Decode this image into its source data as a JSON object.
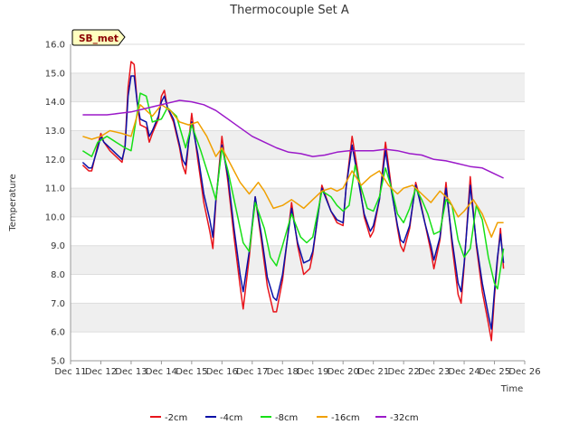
{
  "chart_data": {
    "type": "line",
    "title": "Thermocouple Set A",
    "xlabel": "Time",
    "ylabel": "Temperature",
    "badge": "SB_met",
    "ylim": [
      5.0,
      16.0
    ],
    "yticks": [
      "5.0",
      "6.0",
      "7.0",
      "8.0",
      "9.0",
      "10.0",
      "11.0",
      "12.0",
      "13.0",
      "14.0",
      "15.0",
      "16.0"
    ],
    "xlim": [
      11,
      26
    ],
    "xticks": [
      "Dec 11",
      "Dec 12",
      "Dec 13",
      "Dec 14",
      "Dec 15",
      "Dec 16",
      "Dec 17",
      "Dec 18",
      "Dec 19",
      "Dec 20",
      "Dec 21",
      "Dec 22",
      "Dec 23",
      "Dec 24",
      "Dec 25",
      "Dec 26"
    ],
    "series": [
      {
        "name": "-2cm",
        "color": "#e8141b",
        "x": [
          11.4,
          11.6,
          11.7,
          11.9,
          12.0,
          12.1,
          12.3,
          12.5,
          12.7,
          12.8,
          12.9,
          13.0,
          13.1,
          13.2,
          13.3,
          13.5,
          13.6,
          13.7,
          13.9,
          14.0,
          14.1,
          14.2,
          14.4,
          14.6,
          14.7,
          14.8,
          14.9,
          15.0,
          15.2,
          15.4,
          15.6,
          15.7,
          15.8,
          16.0,
          16.2,
          16.4,
          16.6,
          16.7,
          16.9,
          17.1,
          17.3,
          17.5,
          17.7,
          17.8,
          18.0,
          18.3,
          18.5,
          18.7,
          18.9,
          19.0,
          19.3,
          19.6,
          19.8,
          20.0,
          20.1,
          20.3,
          20.5,
          20.7,
          20.9,
          21.0,
          21.2,
          21.4,
          21.6,
          21.8,
          21.9,
          22.0,
          22.2,
          22.4,
          22.5,
          22.7,
          22.9,
          23.0,
          23.2,
          23.4,
          23.6,
          23.8,
          23.9,
          24.0,
          24.2,
          24.4,
          24.6,
          24.8,
          24.9,
          25.0,
          25.1,
          25.2,
          25.3
        ],
        "y": [
          11.8,
          11.6,
          11.6,
          12.5,
          12.9,
          12.6,
          12.3,
          12.1,
          11.9,
          12.5,
          14.5,
          15.4,
          15.3,
          14.0,
          13.2,
          13.1,
          12.6,
          12.9,
          13.4,
          14.2,
          14.4,
          13.8,
          13.3,
          12.4,
          11.8,
          11.5,
          12.6,
          13.6,
          12.0,
          10.5,
          9.5,
          8.9,
          10.5,
          12.8,
          11.2,
          9.3,
          7.6,
          6.8,
          8.6,
          10.7,
          9.2,
          7.6,
          6.7,
          6.7,
          7.8,
          10.5,
          9.0,
          8.0,
          8.2,
          8.7,
          11.1,
          10.2,
          9.8,
          9.7,
          11.0,
          12.8,
          11.5,
          10.0,
          9.3,
          9.5,
          10.6,
          12.6,
          11.0,
          9.6,
          9.0,
          8.8,
          9.6,
          11.2,
          10.8,
          9.8,
          8.8,
          8.2,
          9.2,
          11.2,
          9.0,
          7.3,
          7.0,
          8.3,
          11.4,
          9.0,
          7.4,
          6.3,
          5.7,
          7.2,
          8.5,
          9.6,
          8.2
        ]
      },
      {
        "name": "-4cm",
        "color": "#0b10a6",
        "x": [
          11.4,
          11.6,
          11.7,
          11.9,
          12.0,
          12.1,
          12.3,
          12.5,
          12.7,
          12.8,
          12.9,
          13.0,
          13.1,
          13.2,
          13.3,
          13.5,
          13.6,
          13.7,
          13.9,
          14.0,
          14.1,
          14.2,
          14.4,
          14.6,
          14.7,
          14.8,
          14.9,
          15.0,
          15.2,
          15.4,
          15.6,
          15.7,
          15.8,
          16.0,
          16.2,
          16.4,
          16.6,
          16.7,
          16.9,
          17.1,
          17.3,
          17.5,
          17.7,
          17.8,
          18.0,
          18.3,
          18.5,
          18.7,
          18.9,
          19.0,
          19.3,
          19.6,
          19.8,
          20.0,
          20.1,
          20.3,
          20.5,
          20.7,
          20.9,
          21.0,
          21.2,
          21.4,
          21.6,
          21.8,
          21.9,
          22.0,
          22.2,
          22.4,
          22.5,
          22.7,
          22.9,
          23.0,
          23.2,
          23.4,
          23.6,
          23.8,
          23.9,
          24.0,
          24.2,
          24.4,
          24.6,
          24.8,
          24.9,
          25.0,
          25.1,
          25.2,
          25.3
        ],
        "y": [
          11.9,
          11.7,
          11.7,
          12.4,
          12.8,
          12.6,
          12.4,
          12.2,
          12.0,
          12.4,
          14.2,
          14.9,
          14.9,
          14.0,
          13.4,
          13.3,
          12.8,
          13.0,
          13.5,
          14.0,
          14.2,
          13.8,
          13.4,
          12.5,
          12.0,
          11.8,
          12.6,
          13.3,
          12.2,
          10.8,
          9.9,
          9.3,
          10.6,
          12.5,
          11.4,
          9.6,
          8.0,
          7.4,
          8.8,
          10.7,
          9.4,
          7.9,
          7.2,
          7.1,
          8.0,
          10.3,
          9.1,
          8.4,
          8.5,
          8.8,
          11.0,
          10.2,
          9.9,
          9.8,
          11.0,
          12.5,
          11.3,
          10.1,
          9.5,
          9.7,
          10.6,
          12.3,
          10.9,
          9.7,
          9.2,
          9.1,
          9.7,
          11.1,
          10.7,
          9.8,
          9.0,
          8.5,
          9.3,
          11.0,
          9.2,
          7.7,
          7.4,
          8.4,
          11.1,
          9.1,
          7.7,
          6.6,
          6.1,
          7.4,
          8.6,
          9.4,
          8.4
        ]
      },
      {
        "name": "-8cm",
        "color": "#16e016",
        "x": [
          11.4,
          11.7,
          11.9,
          12.2,
          12.5,
          12.8,
          13.0,
          13.2,
          13.3,
          13.5,
          13.7,
          14.0,
          14.2,
          14.5,
          14.8,
          15.0,
          15.3,
          15.6,
          15.8,
          16.0,
          16.2,
          16.5,
          16.7,
          16.9,
          17.1,
          17.4,
          17.6,
          17.8,
          18.0,
          18.3,
          18.6,
          18.8,
          19.0,
          19.3,
          19.6,
          19.8,
          20.0,
          20.2,
          20.4,
          20.6,
          20.8,
          21.0,
          21.2,
          21.4,
          21.6,
          21.8,
          22.0,
          22.2,
          22.4,
          22.6,
          22.8,
          23.0,
          23.2,
          23.4,
          23.6,
          23.8,
          24.0,
          24.2,
          24.4,
          24.6,
          24.8,
          25.0,
          25.1,
          25.3
        ],
        "y": [
          12.3,
          12.1,
          12.6,
          12.8,
          12.6,
          12.4,
          12.3,
          13.6,
          14.3,
          14.2,
          13.3,
          13.4,
          13.8,
          13.5,
          12.4,
          13.2,
          12.3,
          11.3,
          10.6,
          12.4,
          11.6,
          10.1,
          9.1,
          8.8,
          10.5,
          9.6,
          8.6,
          8.3,
          9.0,
          10.1,
          9.3,
          9.1,
          9.3,
          10.9,
          10.7,
          10.4,
          10.2,
          10.4,
          11.8,
          11.0,
          10.3,
          10.2,
          10.7,
          11.7,
          11.0,
          10.1,
          9.8,
          10.3,
          11.0,
          10.6,
          10.1,
          9.4,
          9.5,
          10.6,
          10.4,
          9.2,
          8.6,
          8.9,
          10.4,
          9.9,
          8.6,
          7.7,
          7.5,
          8.9
        ]
      },
      {
        "name": "-16cm",
        "color": "#f0a000",
        "x": [
          11.4,
          11.7,
          12.0,
          12.3,
          12.7,
          13.0,
          13.3,
          13.7,
          14.0,
          14.3,
          14.6,
          14.9,
          15.2,
          15.5,
          15.8,
          16.0,
          16.3,
          16.6,
          16.9,
          17.2,
          17.4,
          17.7,
          18.0,
          18.3,
          18.7,
          19.0,
          19.3,
          19.6,
          19.8,
          20.0,
          20.3,
          20.6,
          20.9,
          21.2,
          21.5,
          21.8,
          22.0,
          22.3,
          22.6,
          22.9,
          23.2,
          23.5,
          23.8,
          24.0,
          24.3,
          24.6,
          24.9,
          25.1,
          25.3
        ],
        "y": [
          12.8,
          12.7,
          12.8,
          13.0,
          12.9,
          12.8,
          13.9,
          13.5,
          13.9,
          13.7,
          13.3,
          13.2,
          13.3,
          12.8,
          12.1,
          12.4,
          11.8,
          11.2,
          10.8,
          11.2,
          10.9,
          10.3,
          10.4,
          10.6,
          10.3,
          10.6,
          10.9,
          11.0,
          10.9,
          11.0,
          11.6,
          11.1,
          11.4,
          11.6,
          11.1,
          10.8,
          11.0,
          11.1,
          10.8,
          10.5,
          10.9,
          10.6,
          10.0,
          10.2,
          10.6,
          10.1,
          9.3,
          9.8,
          9.8
        ]
      },
      {
        "name": "-32cm",
        "color": "#9b19c9",
        "x": [
          11.4,
          11.8,
          12.2,
          12.6,
          13.0,
          13.4,
          13.8,
          14.2,
          14.6,
          15.0,
          15.4,
          15.8,
          16.2,
          16.6,
          17.0,
          17.4,
          17.8,
          18.2,
          18.6,
          19.0,
          19.4,
          19.8,
          20.2,
          20.6,
          21.0,
          21.4,
          21.8,
          22.2,
          22.6,
          23.0,
          23.4,
          23.8,
          24.2,
          24.6,
          25.0,
          25.3
        ],
        "y": [
          13.55,
          13.55,
          13.55,
          13.6,
          13.65,
          13.75,
          13.85,
          13.95,
          14.05,
          14.0,
          13.9,
          13.7,
          13.4,
          13.1,
          12.8,
          12.6,
          12.4,
          12.25,
          12.2,
          12.1,
          12.15,
          12.25,
          12.3,
          12.3,
          12.3,
          12.35,
          12.3,
          12.2,
          12.15,
          12.0,
          11.95,
          11.85,
          11.75,
          11.7,
          11.5,
          11.35
        ]
      }
    ]
  }
}
